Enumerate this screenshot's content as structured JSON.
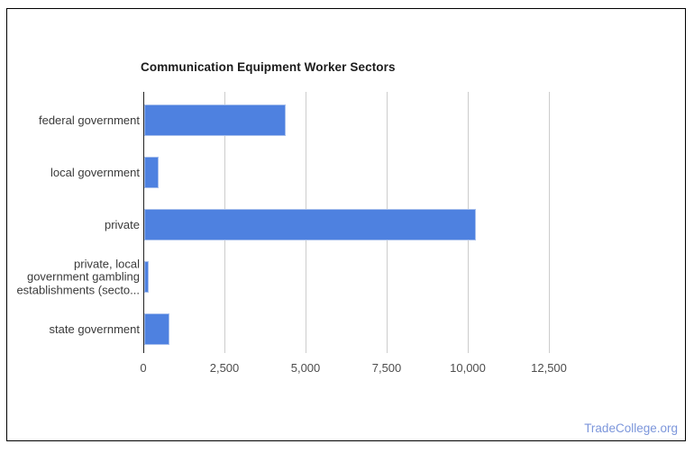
{
  "chart_data": {
    "type": "bar",
    "orientation": "horizontal",
    "title": "Communication Equipment Worker Sectors",
    "categories": [
      "federal government",
      "local government",
      "private",
      "private, local\ngovernment gambling\nestablishments (secto...",
      "state government"
    ],
    "values": [
      4360,
      440,
      10210,
      140,
      770
    ],
    "x_ticks": [
      {
        "value": 0,
        "label": "0"
      },
      {
        "value": 2500,
        "label": "2,500"
      },
      {
        "value": 5000,
        "label": "5,000"
      },
      {
        "value": 7500,
        "label": "7,500"
      },
      {
        "value": 10000,
        "label": "10,000"
      },
      {
        "value": 12500,
        "label": "12,500"
      }
    ],
    "xlim": [
      0,
      15150
    ],
    "grid": true,
    "legend": "none",
    "colors": {
      "bar_fill": "#4e81e0",
      "bar_border": "#a7bfec",
      "axis_line": "#222222",
      "gridline": "#cccccc",
      "category_label": "#3a3a3a",
      "tick_label": "#4d4d4d",
      "title": "#1c1c1c"
    }
  },
  "footer": {
    "brand": "TradeCollege.org",
    "color": "#7c96db"
  }
}
